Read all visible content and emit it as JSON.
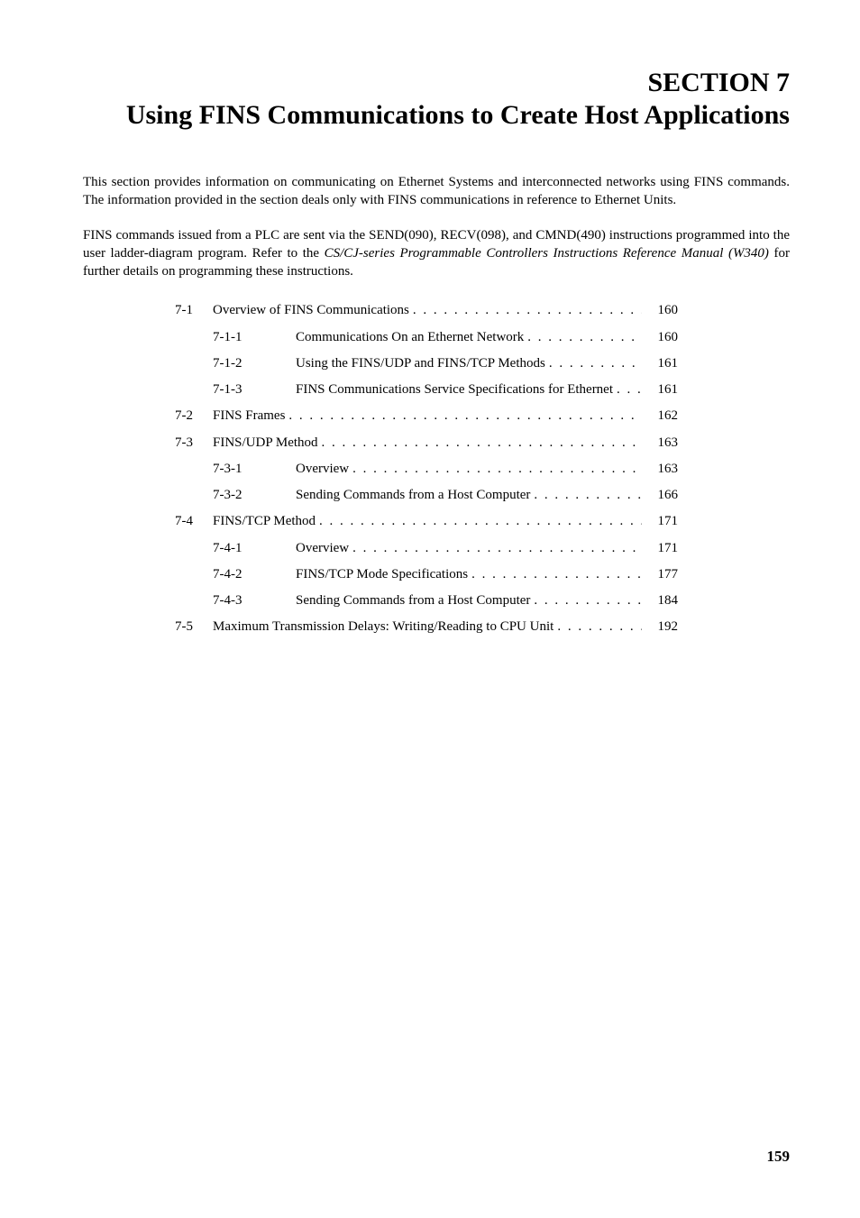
{
  "section_number": "SECTION 7",
  "section_title": "Using FINS Communications to Create Host Applications",
  "intro_para_1": "This section provides information on communicating on Ethernet Systems and interconnected networks using FINS commands. The information provided in the section deals only with FINS communications in reference to Ethernet Units.",
  "intro_para_2_pre": "FINS commands issued from a PLC are sent via the SEND(090), RECV(098), and CMND(490) instructions programmed into the user ladder-diagram program. Refer to the ",
  "intro_para_2_italic": "CS/CJ-series Programmable Controllers Instructions Reference Manual (W340)",
  "intro_para_2_post": " for further details on programming these instructions.",
  "toc": [
    {
      "level": 1,
      "num": "7-1",
      "text": "Overview of FINS Communications",
      "page": "160"
    },
    {
      "level": 2,
      "num": "7-1-1",
      "text": "Communications On an Ethernet Network",
      "page": "160"
    },
    {
      "level": 2,
      "num": "7-1-2",
      "text": "Using the FINS/UDP and FINS/TCP Methods ",
      "page": "161"
    },
    {
      "level": 2,
      "num": "7-1-3",
      "text": "FINS Communications Service Specifications for Ethernet ",
      "page": "161"
    },
    {
      "level": 1,
      "num": "7-2",
      "text": "FINS Frames ",
      "page": "162"
    },
    {
      "level": 1,
      "num": "7-3",
      "text": "FINS/UDP Method ",
      "page": "163"
    },
    {
      "level": 2,
      "num": "7-3-1",
      "text": "Overview",
      "page": "163"
    },
    {
      "level": 2,
      "num": "7-3-2",
      "text": "Sending Commands from a Host Computer",
      "page": "166"
    },
    {
      "level": 1,
      "num": "7-4",
      "text": "FINS/TCP Method ",
      "page": "171"
    },
    {
      "level": 2,
      "num": "7-4-1",
      "text": "Overview",
      "page": "171"
    },
    {
      "level": 2,
      "num": "7-4-2",
      "text": "FINS/TCP Mode Specifications ",
      "page": "177"
    },
    {
      "level": 2,
      "num": "7-4-3",
      "text": "Sending Commands from a Host Computer",
      "page": "184"
    },
    {
      "level": 1,
      "num": "7-5",
      "text": "Maximum Transmission Delays: Writing/Reading to CPU Unit ",
      "page": "192"
    }
  ],
  "page_number": "159"
}
